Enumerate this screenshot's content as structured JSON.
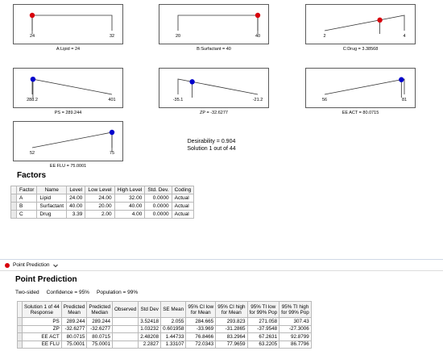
{
  "ramps": [
    {
      "name": "A:Lipid = 24",
      "low": "24",
      "high": "32",
      "kind": "plateau",
      "value": 24,
      "min": 24,
      "max": 32,
      "color": "#d8000c"
    },
    {
      "name": "B:Surfactant = 40",
      "low": "20",
      "high": "40",
      "kind": "plateau",
      "value": 40,
      "min": 20,
      "max": 40,
      "color": "#d8000c"
    },
    {
      "name": "C:Drug = 3.38568",
      "low": "2",
      "high": "4",
      "kind": "rise",
      "value": 3.38568,
      "min": 2,
      "max": 4,
      "color": "#d8000c"
    },
    {
      "name": "PS = 289.244",
      "low": "288.2",
      "high": "401",
      "kind": "fall",
      "value": 289.244,
      "min": 288.2,
      "max": 401,
      "color": "#0000cc"
    },
    {
      "name": "ZP = -32.6277",
      "low": "-35.1",
      "high": "-21.2",
      "kind": "fall",
      "value": -32.6277,
      "min": -35.1,
      "max": -21.2,
      "color": "#0000cc"
    },
    {
      "name": "EE ACT = 80.0715",
      "low": "56",
      "high": "81",
      "kind": "rise",
      "value": 80.0715,
      "min": 56,
      "max": 81,
      "color": "#0000cc"
    },
    {
      "name": "EE FLU = 75.0001",
      "low": "52",
      "high": "75",
      "kind": "rise",
      "value": 75.0001,
      "min": 52,
      "max": 75,
      "color": "#0000cc"
    }
  ],
  "summary": {
    "desirability": "Desirability = 0.904",
    "solution": "Solution 1 out of 44"
  },
  "factors": {
    "title": "Factors",
    "headers": [
      "Factor",
      "Name",
      "Level",
      "Low Level",
      "High Level",
      "Std. Dev.",
      "Coding"
    ],
    "rows": [
      [
        "A",
        "Lipid",
        "24.00",
        "24.00",
        "32.00",
        "0.0000",
        "Actual"
      ],
      [
        "B",
        "Surfactant",
        "40.00",
        "20.00",
        "40.00",
        "0.0000",
        "Actual"
      ],
      [
        "C",
        "Drug",
        "3.39",
        "2.00",
        "4.00",
        "0.0000",
        "Actual"
      ]
    ]
  },
  "tab": {
    "label": "Point Prediction"
  },
  "prediction": {
    "title": "Point Prediction",
    "sided": "Two-sided",
    "confidence": "Confidence = 95%",
    "population": "Population = 99%",
    "headers": [
      "Solution 1 of 44\nResponse",
      "Predicted\nMean",
      "Predicted\nMedian",
      "Observed",
      "Std Dev",
      "SE Mean",
      "95% CI low\nfor Mean",
      "95% CI high\nfor Mean",
      "95% TI low\nfor 99% Pop",
      "95% TI high\nfor 99% Pop"
    ],
    "rows": [
      [
        "PS",
        "289.244",
        "289.244",
        "",
        "3.52418",
        "2.055",
        "284.665",
        "293.823",
        "271.058",
        "307.43"
      ],
      [
        "ZP",
        "-32.6277",
        "-32.6277",
        "",
        "1.03232",
        "0.601958",
        "-33.969",
        "-31.2865",
        "-37.9548",
        "-27.3006"
      ],
      [
        "EE ACT",
        "80.0715",
        "80.0715",
        "",
        "2.48208",
        "1.44733",
        "76.8466",
        "83.2964",
        "67.2631",
        "92.8799"
      ],
      [
        "EE FLU",
        "75.0001",
        "75.0001",
        "",
        "2.2827",
        "1.33107",
        "72.0343",
        "77.9659",
        "63.2205",
        "86.7796"
      ]
    ]
  }
}
